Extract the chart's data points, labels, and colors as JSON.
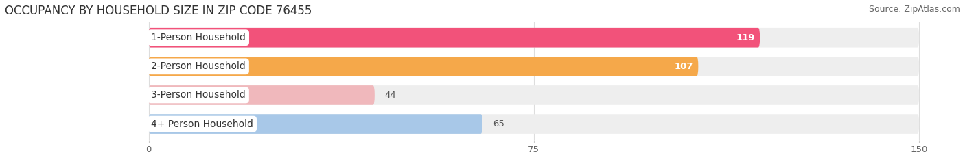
{
  "title": "OCCUPANCY BY HOUSEHOLD SIZE IN ZIP CODE 76455",
  "source": "Source: ZipAtlas.com",
  "categories": [
    "1-Person Household",
    "2-Person Household",
    "3-Person Household",
    "4+ Person Household"
  ],
  "values": [
    119,
    107,
    44,
    65
  ],
  "bar_colors": [
    "#f2527a",
    "#f5a84a",
    "#f0b8bc",
    "#a8c8e8"
  ],
  "xlim_data": [
    0,
    150
  ],
  "xticks": [
    0,
    75,
    150
  ],
  "background_color": "#ffffff",
  "bar_track_color": "#eeeeee",
  "title_fontsize": 12,
  "source_fontsize": 9,
  "label_fontsize": 10,
  "value_fontsize": 9.5
}
